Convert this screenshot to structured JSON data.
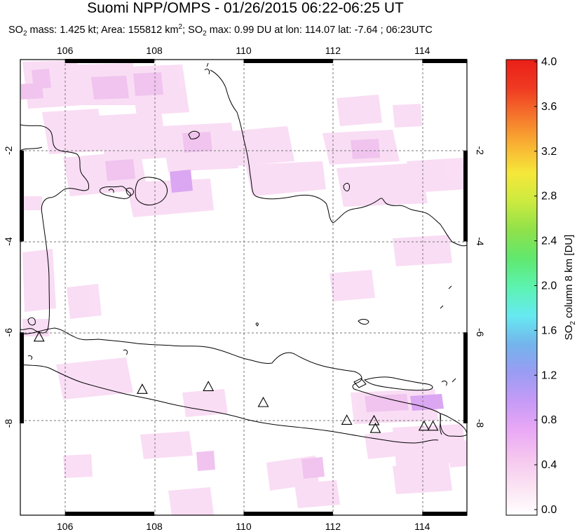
{
  "title": "Suomi NPP/OMPS - 01/26/2015 06:22-06:25 UT",
  "subtitle": {
    "p1": "SO",
    "sub1": "2",
    "p2": " mass: 1.425 kt; Area: 155812 km",
    "sup": "2",
    "p3": "; SO",
    "sub2": "2",
    "p4": " max: 0.99 DU at lon: 114.07 lat: -7.64 ; 06:23UTC"
  },
  "map": {
    "lon_range": [
      105,
      115
    ],
    "lat_range": [
      -10,
      0
    ],
    "lon_ticks": [
      "106",
      "108",
      "110",
      "112",
      "114"
    ],
    "lat_ticks": [
      "-2",
      "-4",
      "-6",
      "-8"
    ],
    "volcano_icon": "triangle-outline",
    "volcanoes": [
      {
        "lon": 105.42,
        "lat": -6.1
      },
      {
        "lon": 107.73,
        "lat": -7.25
      },
      {
        "lon": 109.21,
        "lat": -7.19
      },
      {
        "lon": 110.44,
        "lat": -7.54
      },
      {
        "lon": 112.31,
        "lat": -7.93
      },
      {
        "lon": 112.92,
        "lat": -7.94
      },
      {
        "lon": 112.95,
        "lat": -8.11
      },
      {
        "lon": 114.04,
        "lat": -8.06
      },
      {
        "lon": 114.24,
        "lat": -8.06
      }
    ]
  },
  "colorbar": {
    "label_p1": "SO",
    "label_sub": "2",
    "label_p2": " column 8 km [DU]",
    "ticks": [
      "4.0",
      "3.6",
      "3.2",
      "2.8",
      "2.4",
      "2.0",
      "1.6",
      "1.2",
      "0.8",
      "0.4",
      "0.0"
    ],
    "range": [
      0,
      4
    ],
    "colors": [
      "#ffffff",
      "#fbe3f3",
      "#f5c6ef",
      "#e9a8f5",
      "#c69bf7",
      "#9a9cf3",
      "#73b4ec",
      "#66e9f1",
      "#5cf3b1",
      "#60e86f",
      "#8fe14a",
      "#cbea3f",
      "#f5e83a",
      "#f9b233",
      "#f5762c",
      "#ef3a22",
      "#ea1f17"
    ]
  }
}
